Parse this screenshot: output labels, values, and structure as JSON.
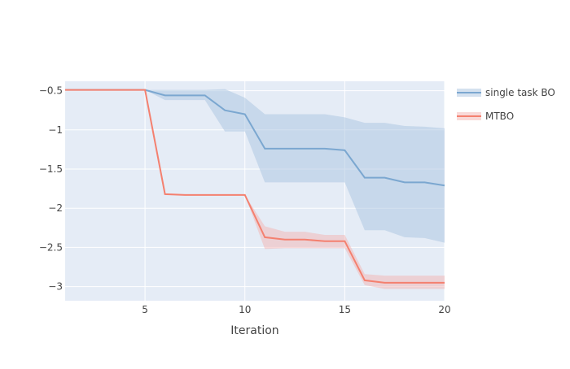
{
  "chart_data": {
    "type": "line",
    "title": "",
    "xlabel": "Iteration",
    "ylabel": "",
    "xlim": [
      1,
      20
    ],
    "ylim": [
      -3.18,
      -0.38
    ],
    "xticks": [
      5,
      10,
      15,
      20
    ],
    "yticks": [
      -0.5,
      -1,
      -1.5,
      -2,
      -2.5,
      -3
    ],
    "ytick_labels": [
      "−0.5",
      "−1",
      "−1.5",
      "−2",
      "−2.5",
      "−3"
    ],
    "grid": true,
    "legend_position": "top-right",
    "x": [
      1,
      2,
      3,
      4,
      5,
      6,
      7,
      8,
      9,
      10,
      11,
      12,
      13,
      14,
      15,
      16,
      17,
      18,
      19,
      20
    ],
    "series": [
      {
        "name": "single task BO",
        "color": "#7ba7d0",
        "band_color": "#a9c4e0",
        "values": [
          -0.49,
          -0.49,
          -0.49,
          -0.49,
          -0.49,
          -0.56,
          -0.56,
          -0.56,
          -0.75,
          -0.8,
          -1.24,
          -1.24,
          -1.24,
          -1.24,
          -1.26,
          -1.61,
          -1.61,
          -1.67,
          -1.67,
          -1.71
        ],
        "upper": [
          -0.49,
          -0.49,
          -0.49,
          -0.49,
          -0.49,
          -0.49,
          -0.49,
          -0.49,
          -0.48,
          -0.59,
          -0.8,
          -0.8,
          -0.8,
          -0.8,
          -0.84,
          -0.91,
          -0.91,
          -0.95,
          -0.96,
          -0.98
        ],
        "lower": [
          -0.49,
          -0.49,
          -0.49,
          -0.49,
          -0.49,
          -0.62,
          -0.62,
          -0.62,
          -1.02,
          -1.02,
          -1.67,
          -1.67,
          -1.67,
          -1.67,
          -1.67,
          -2.28,
          -2.28,
          -2.37,
          -2.38,
          -2.44
        ]
      },
      {
        "name": "MTBO",
        "color": "#f4806f",
        "band_color": "#f3b3b1",
        "values": [
          -0.49,
          -0.49,
          -0.49,
          -0.49,
          -0.49,
          -1.82,
          -1.83,
          -1.83,
          -1.83,
          -1.83,
          -2.37,
          -2.4,
          -2.4,
          -2.42,
          -2.42,
          -2.92,
          -2.95,
          -2.95,
          -2.95,
          -2.95
        ],
        "upper": [
          -0.49,
          -0.49,
          -0.49,
          -0.49,
          -0.49,
          -1.82,
          -1.83,
          -1.83,
          -1.83,
          -1.83,
          -2.23,
          -2.3,
          -2.3,
          -2.34,
          -2.34,
          -2.84,
          -2.86,
          -2.86,
          -2.86,
          -2.86
        ],
        "lower": [
          -0.49,
          -0.49,
          -0.49,
          -0.49,
          -0.49,
          -1.82,
          -1.83,
          -1.83,
          -1.83,
          -1.83,
          -2.52,
          -2.51,
          -2.51,
          -2.51,
          -2.51,
          -2.98,
          -3.03,
          -3.03,
          -3.03,
          -3.03
        ]
      }
    ]
  }
}
